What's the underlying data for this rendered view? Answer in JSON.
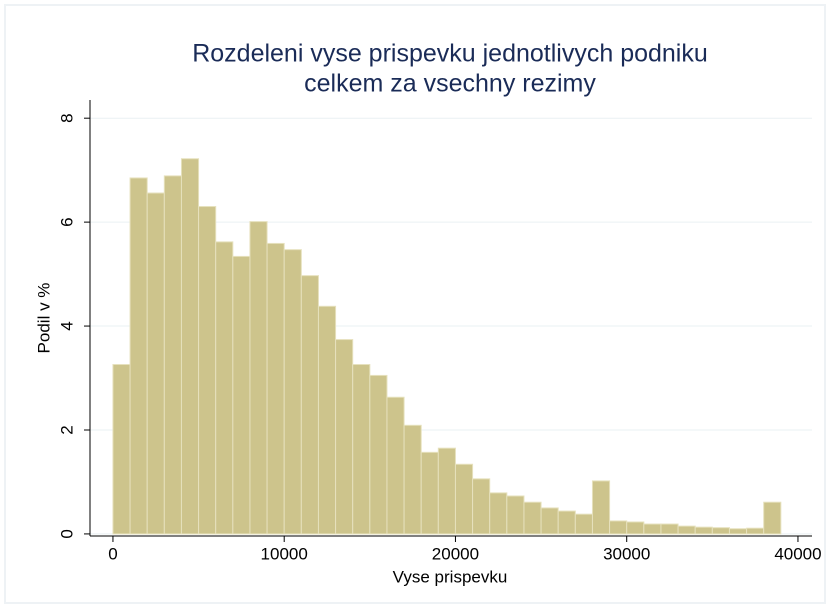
{
  "chart_data": {
    "type": "histogram",
    "title": [
      "Rozdeleni vyse prispevku jednotlivych podniku",
      "celkem za vsechny rezimy"
    ],
    "x_label": "Vyse prispevku",
    "y_label": "Podil v %",
    "bins": [
      0,
      1000,
      2000,
      3000,
      4000,
      5000,
      6000,
      7000,
      8000,
      9000,
      10000,
      11000,
      12000,
      13000,
      14000,
      15000,
      16000,
      17000,
      18000,
      19000,
      20000,
      21000,
      22000,
      23000,
      24000,
      25000,
      26000,
      27000,
      28000,
      29000,
      30000,
      31000,
      32000,
      33000,
      34000,
      35000,
      36000,
      37000,
      38000,
      39000
    ],
    "values": [
      3.26,
      6.85,
      6.56,
      6.89,
      7.22,
      6.3,
      5.62,
      5.34,
      6.01,
      5.59,
      5.47,
      4.97,
      4.38,
      3.74,
      3.26,
      3.05,
      2.63,
      2.09,
      1.57,
      1.65,
      1.34,
      1.06,
      0.79,
      0.73,
      0.61,
      0.5,
      0.44,
      0.38,
      1.02,
      0.25,
      0.23,
      0.19,
      0.19,
      0.15,
      0.13,
      0.12,
      0.1,
      0.11,
      0.61
    ],
    "color": "#cdc48c",
    "xlim": [
      -1340,
      40820
    ],
    "xticks": [
      0,
      10000,
      20000,
      30000,
      40000
    ],
    "ylim": [
      -0.04,
      8.35
    ],
    "yticks": [
      0,
      2,
      4,
      6,
      8
    ],
    "grid": true
  }
}
